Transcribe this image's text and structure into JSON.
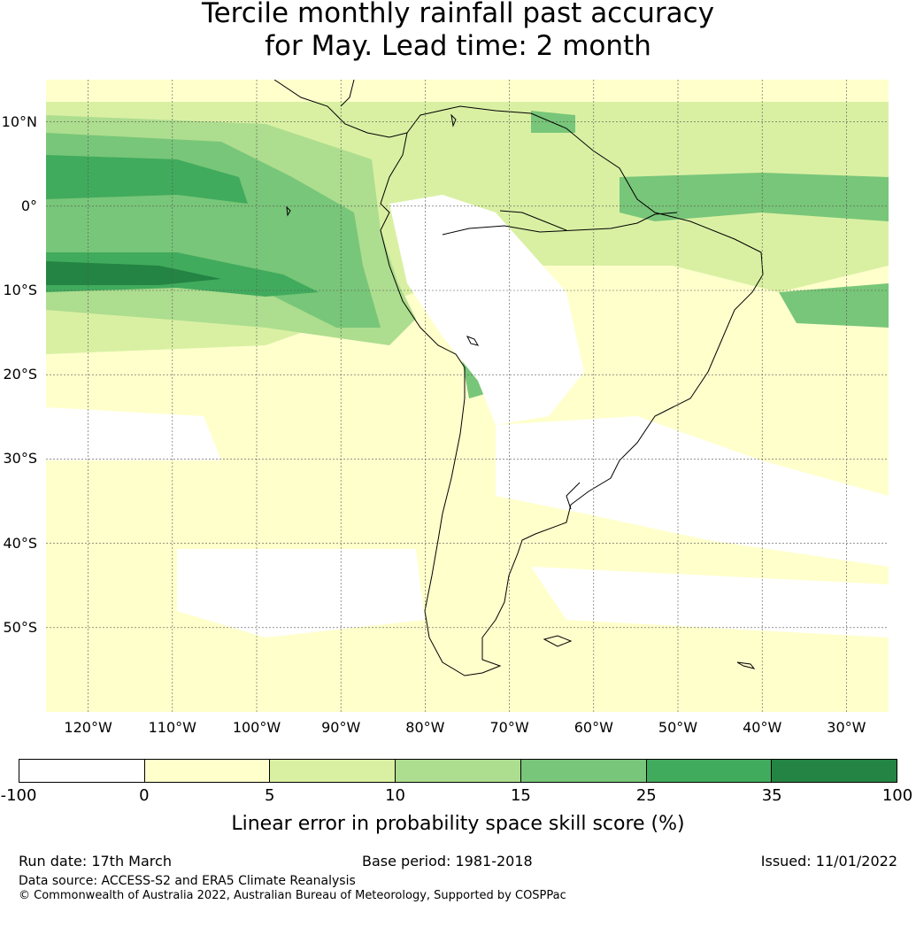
{
  "title_line1": "Tercile monthly rainfall past accuracy",
  "title_line2": "for May. Lead time: 2 month",
  "lat_labels": [
    "10°N",
    "0°",
    "10°S",
    "20°S",
    "30°S",
    "40°S",
    "50°S"
  ],
  "lon_labels": [
    "120°W",
    "110°W",
    "100°W",
    "90°W",
    "80°W",
    "70°W",
    "60°W",
    "50°W",
    "40°W",
    "30°W"
  ],
  "colorbar": {
    "bounds": [
      "-100",
      "0",
      "5",
      "10",
      "15",
      "25",
      "35",
      "100"
    ],
    "colors": [
      "#ffffff",
      "#ffffcc",
      "#d9f0a3",
      "#addd8e",
      "#78c679",
      "#41ab5d",
      "#238443"
    ],
    "label": "Linear error in probability space skill score (%)"
  },
  "footer": {
    "run_date": "Run date: 17th March",
    "base_period": "Base period: 1981-2018",
    "issued": "Issued: 11/01/2022",
    "data_source": "Data source: ACCESS-S2 and ERA5 Climate Reanalysis",
    "copyright": "© Commonwealth of Australia 2022, Australian Bureau of Meteorology, Supported by COSPPac"
  },
  "map": {
    "lon_range": [
      -125,
      -25
    ],
    "lat_range": [
      -60,
      15
    ]
  }
}
